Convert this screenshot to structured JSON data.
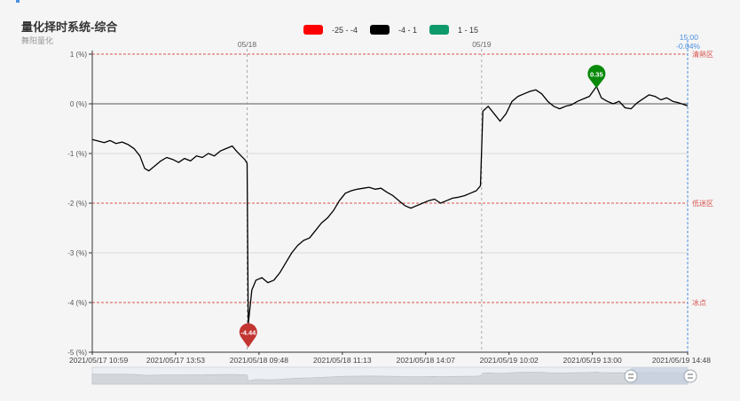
{
  "header": {
    "title": "量化择时系统-综合",
    "subtitle": "舞阳量化"
  },
  "legend": [
    {
      "label": "-25 - -4",
      "color": "#ff0000"
    },
    {
      "label": "-4 - 1",
      "color": "#000000"
    },
    {
      "label": "1 - 15",
      "color": "#0e9a6a"
    }
  ],
  "colors": {
    "line": "#000000",
    "zone_line": "#d9534f",
    "min_pin": "#c23531",
    "max_pin": "#0a8a0a",
    "current_line": "#4a90e2"
  },
  "chart_data": {
    "type": "line",
    "title": "量化择时系统-综合",
    "ylim": [
      -5,
      1
    ],
    "y_ticks": [
      {
        "value": 1,
        "label": "1 (%)"
      },
      {
        "value": 0,
        "label": "0 (%)"
      },
      {
        "value": -1,
        "label": "-1 (%)"
      },
      {
        "value": -2,
        "label": "-2 (%)"
      },
      {
        "value": -3,
        "label": "-3 (%)"
      },
      {
        "value": -4,
        "label": "-4 (%)"
      },
      {
        "value": -5,
        "label": "-5 (%)"
      }
    ],
    "x_ticks": [
      {
        "x": 0,
        "label": "2021/05/17 10:59"
      },
      {
        "x": 0.14,
        "label": "2021/05/17 13:53"
      },
      {
        "x": 0.28,
        "label": "2021/05/18 09:48"
      },
      {
        "x": 0.42,
        "label": "2021/05/18 11:13"
      },
      {
        "x": 0.56,
        "label": "2021/05/18 14:07"
      },
      {
        "x": 0.7,
        "label": "2021/05/19 10:02"
      },
      {
        "x": 0.84,
        "label": "2021/05/19 13:00"
      },
      {
        "x": 1.0,
        "label": "2021/05/19 14:48"
      }
    ],
    "day_separators": [
      {
        "x": 0.26,
        "label": "05/18"
      },
      {
        "x": 0.654,
        "label": "05/19"
      }
    ],
    "zones": [
      {
        "value": 1,
        "label": "清熱区"
      },
      {
        "value": -2,
        "label": "低迷区"
      },
      {
        "value": -4,
        "label": "冰点"
      }
    ],
    "current": {
      "x": 1.0,
      "time": "15:00",
      "value": "-0.04%"
    },
    "markers": [
      {
        "x": 0.262,
        "value": -4.44,
        "label": "-4.44",
        "kind": "min"
      },
      {
        "x": 0.847,
        "value": 0.35,
        "label": "0.35",
        "kind": "max"
      }
    ],
    "series": [
      {
        "points": [
          [
            0.0,
            -0.72
          ],
          [
            0.01,
            -0.75
          ],
          [
            0.02,
            -0.78
          ],
          [
            0.03,
            -0.74
          ],
          [
            0.04,
            -0.8
          ],
          [
            0.05,
            -0.77
          ],
          [
            0.06,
            -0.82
          ],
          [
            0.07,
            -0.9
          ],
          [
            0.08,
            -1.05
          ],
          [
            0.088,
            -1.3
          ],
          [
            0.095,
            -1.35
          ],
          [
            0.105,
            -1.25
          ],
          [
            0.115,
            -1.15
          ],
          [
            0.125,
            -1.08
          ],
          [
            0.135,
            -1.12
          ],
          [
            0.145,
            -1.18
          ],
          [
            0.155,
            -1.1
          ],
          [
            0.165,
            -1.15
          ],
          [
            0.175,
            -1.05
          ],
          [
            0.185,
            -1.08
          ],
          [
            0.195,
            -1.0
          ],
          [
            0.205,
            -1.05
          ],
          [
            0.215,
            -0.95
          ],
          [
            0.225,
            -0.9
          ],
          [
            0.235,
            -0.85
          ],
          [
            0.242,
            -0.95
          ],
          [
            0.25,
            -1.05
          ],
          [
            0.256,
            -1.12
          ],
          [
            0.26,
            -1.2
          ],
          [
            0.262,
            -4.44
          ],
          [
            0.268,
            -3.75
          ],
          [
            0.275,
            -3.55
          ],
          [
            0.285,
            -3.5
          ],
          [
            0.295,
            -3.6
          ],
          [
            0.305,
            -3.55
          ],
          [
            0.315,
            -3.4
          ],
          [
            0.325,
            -3.2
          ],
          [
            0.335,
            -3.0
          ],
          [
            0.345,
            -2.85
          ],
          [
            0.355,
            -2.75
          ],
          [
            0.365,
            -2.7
          ],
          [
            0.375,
            -2.55
          ],
          [
            0.385,
            -2.4
          ],
          [
            0.395,
            -2.3
          ],
          [
            0.405,
            -2.15
          ],
          [
            0.415,
            -1.95
          ],
          [
            0.425,
            -1.8
          ],
          [
            0.435,
            -1.75
          ],
          [
            0.445,
            -1.72
          ],
          [
            0.455,
            -1.7
          ],
          [
            0.465,
            -1.68
          ],
          [
            0.475,
            -1.72
          ],
          [
            0.485,
            -1.7
          ],
          [
            0.495,
            -1.78
          ],
          [
            0.505,
            -1.85
          ],
          [
            0.515,
            -1.95
          ],
          [
            0.525,
            -2.05
          ],
          [
            0.535,
            -2.1
          ],
          [
            0.545,
            -2.05
          ],
          [
            0.555,
            -2.0
          ],
          [
            0.565,
            -1.95
          ],
          [
            0.575,
            -1.92
          ],
          [
            0.585,
            -2.0
          ],
          [
            0.595,
            -1.95
          ],
          [
            0.605,
            -1.9
          ],
          [
            0.615,
            -1.88
          ],
          [
            0.625,
            -1.85
          ],
          [
            0.635,
            -1.8
          ],
          [
            0.645,
            -1.75
          ],
          [
            0.652,
            -1.65
          ],
          [
            0.656,
            -0.15
          ],
          [
            0.665,
            -0.05
          ],
          [
            0.675,
            -0.2
          ],
          [
            0.685,
            -0.35
          ],
          [
            0.695,
            -0.2
          ],
          [
            0.705,
            0.05
          ],
          [
            0.715,
            0.15
          ],
          [
            0.725,
            0.2
          ],
          [
            0.735,
            0.25
          ],
          [
            0.745,
            0.28
          ],
          [
            0.755,
            0.2
          ],
          [
            0.765,
            0.05
          ],
          [
            0.775,
            -0.05
          ],
          [
            0.785,
            -0.1
          ],
          [
            0.795,
            -0.05
          ],
          [
            0.805,
            -0.02
          ],
          [
            0.815,
            0.05
          ],
          [
            0.825,
            0.1
          ],
          [
            0.835,
            0.15
          ],
          [
            0.847,
            0.35
          ],
          [
            0.855,
            0.12
          ],
          [
            0.865,
            0.05
          ],
          [
            0.875,
            0.0
          ],
          [
            0.885,
            0.05
          ],
          [
            0.895,
            -0.08
          ],
          [
            0.905,
            -0.1
          ],
          [
            0.915,
            0.02
          ],
          [
            0.925,
            0.1
          ],
          [
            0.935,
            0.18
          ],
          [
            0.945,
            0.15
          ],
          [
            0.955,
            0.08
          ],
          [
            0.965,
            0.12
          ],
          [
            0.975,
            0.05
          ],
          [
            0.985,
            0.02
          ],
          [
            0.995,
            -0.02
          ],
          [
            1.0,
            -0.04
          ]
        ]
      }
    ]
  }
}
